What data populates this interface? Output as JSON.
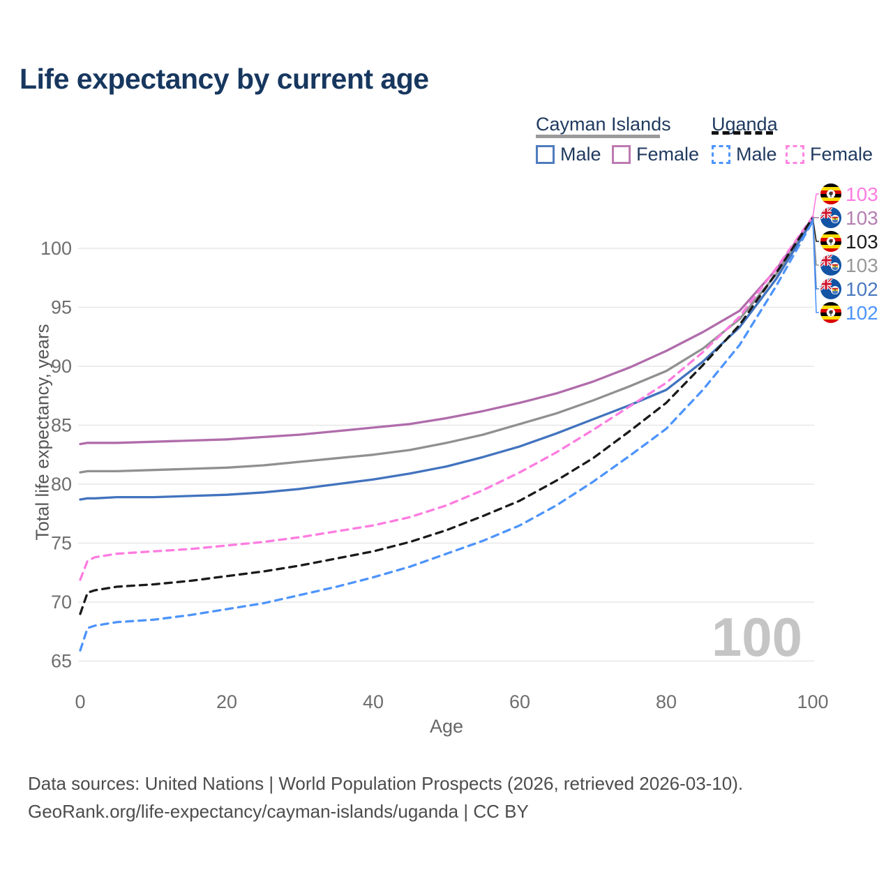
{
  "title": "Life expectancy by current age",
  "watermark": "100",
  "legend": {
    "groups": [
      {
        "label": "Cayman Islands",
        "underline_style": "solid",
        "underline_color": "#9a9a9a",
        "items": [
          {
            "label": "Male",
            "swatch_color": "#4f7cbe",
            "swatch_style": "solid"
          },
          {
            "label": "Female",
            "swatch_color": "#bd7ab0",
            "swatch_style": "solid"
          }
        ]
      },
      {
        "label": "Uganda",
        "underline_style": "dashed",
        "underline_color": "#111111",
        "items": [
          {
            "label": "Male",
            "swatch_color": "#4d94fb",
            "swatch_style": "dashed"
          },
          {
            "label": "Female",
            "swatch_color": "#fd85e2",
            "swatch_style": "dashed"
          }
        ]
      }
    ]
  },
  "right_labels": [
    {
      "country": "Uganda",
      "series": "Uganda Female",
      "value": "103",
      "color": "#fd7ce0",
      "flag": "uganda"
    },
    {
      "country": "Cayman Islands",
      "series": "Cayman Islands Female",
      "value": "103",
      "color": "#b57fb0",
      "flag": "cayman"
    },
    {
      "country": "Uganda",
      "series": "Uganda",
      "value": "103",
      "color": "#1a1a1a",
      "flag": "uganda"
    },
    {
      "country": "Cayman Islands",
      "series": "Cayman Islands",
      "value": "103",
      "color": "#999999",
      "flag": "cayman"
    },
    {
      "country": "Cayman Islands",
      "series": "Cayman Islands Male",
      "value": "102",
      "color": "#4a7ac0",
      "flag": "cayman"
    },
    {
      "country": "Uganda",
      "series": "Uganda Male",
      "value": "102",
      "color": "#4d94fb",
      "flag": "uganda"
    }
  ],
  "footer": {
    "line1": "Data sources: United Nations | World Population Prospects (2026, retrieved 2026-03-10).",
    "line2": "GeoRank.org/life-expectancy/cayman-islands/uganda | CC BY"
  },
  "chart_data": {
    "type": "line",
    "title": "Life expectancy by current age",
    "xlabel": "Age",
    "ylabel": "Total life expectancy, years",
    "xlim": [
      0,
      100
    ],
    "ylim": [
      64,
      103.5
    ],
    "x_ticks": [
      0,
      20,
      40,
      60,
      80,
      100
    ],
    "y_ticks": [
      65,
      70,
      75,
      80,
      85,
      90,
      95,
      100
    ],
    "grid": "horizontal",
    "legend_position": "top-right",
    "x": [
      0,
      1,
      2,
      5,
      10,
      15,
      20,
      25,
      30,
      35,
      40,
      45,
      50,
      55,
      60,
      65,
      70,
      75,
      80,
      85,
      90,
      95,
      100
    ],
    "series": [
      {
        "name": "Cayman Islands Female",
        "country": "Cayman Islands",
        "sex": "female",
        "style": "solid",
        "color": "#b06cab",
        "end_value_label": "103",
        "values": [
          83.4,
          83.5,
          83.5,
          83.5,
          83.6,
          83.7,
          83.8,
          84.0,
          84.2,
          84.5,
          84.8,
          85.1,
          85.6,
          86.2,
          86.9,
          87.7,
          88.7,
          89.9,
          91.3,
          92.9,
          94.7,
          98.2,
          102.6
        ]
      },
      {
        "name": "Cayman Islands",
        "country": "Cayman Islands",
        "sex": "all",
        "style": "solid",
        "color": "#909090",
        "end_value_label": "103",
        "values": [
          81.0,
          81.1,
          81.1,
          81.1,
          81.2,
          81.3,
          81.4,
          81.6,
          81.9,
          82.2,
          82.5,
          82.9,
          83.5,
          84.2,
          85.1,
          86.0,
          87.1,
          88.3,
          89.6,
          91.5,
          94.0,
          97.8,
          102.5
        ]
      },
      {
        "name": "Cayman Islands Male",
        "country": "Cayman Islands",
        "sex": "male",
        "style": "solid",
        "color": "#4273be",
        "end_value_label": "102",
        "values": [
          78.7,
          78.8,
          78.8,
          78.9,
          78.9,
          79.0,
          79.1,
          79.3,
          79.6,
          80.0,
          80.4,
          80.9,
          81.5,
          82.3,
          83.2,
          84.3,
          85.5,
          86.7,
          88.0,
          90.4,
          93.3,
          97.4,
          102.4
        ]
      },
      {
        "name": "Uganda Female",
        "country": "Uganda",
        "sex": "female",
        "style": "dashed",
        "color": "#fd7ce0",
        "end_value_label": "103",
        "values": [
          71.9,
          73.5,
          73.8,
          74.1,
          74.3,
          74.5,
          74.8,
          75.1,
          75.5,
          76.0,
          76.5,
          77.2,
          78.2,
          79.5,
          81.0,
          82.7,
          84.6,
          86.6,
          88.6,
          91.2,
          94.2,
          98.3,
          102.7
        ]
      },
      {
        "name": "Uganda",
        "country": "Uganda",
        "sex": "all",
        "style": "dashed",
        "color": "#1a1a1a",
        "end_value_label": "103",
        "values": [
          69.0,
          70.8,
          71.0,
          71.3,
          71.5,
          71.8,
          72.2,
          72.6,
          73.1,
          73.7,
          74.3,
          75.1,
          76.1,
          77.3,
          78.6,
          80.3,
          82.2,
          84.5,
          86.9,
          90.1,
          93.5,
          97.9,
          102.6
        ]
      },
      {
        "name": "Uganda Male",
        "country": "Uganda",
        "sex": "male",
        "style": "dashed",
        "color": "#4d94fb",
        "end_value_label": "102",
        "values": [
          65.9,
          67.8,
          68.0,
          68.3,
          68.5,
          68.9,
          69.4,
          69.9,
          70.6,
          71.3,
          72.1,
          73.0,
          74.1,
          75.2,
          76.5,
          78.2,
          80.2,
          82.4,
          84.7,
          88.0,
          91.8,
          96.8,
          102.3
        ]
      }
    ]
  }
}
